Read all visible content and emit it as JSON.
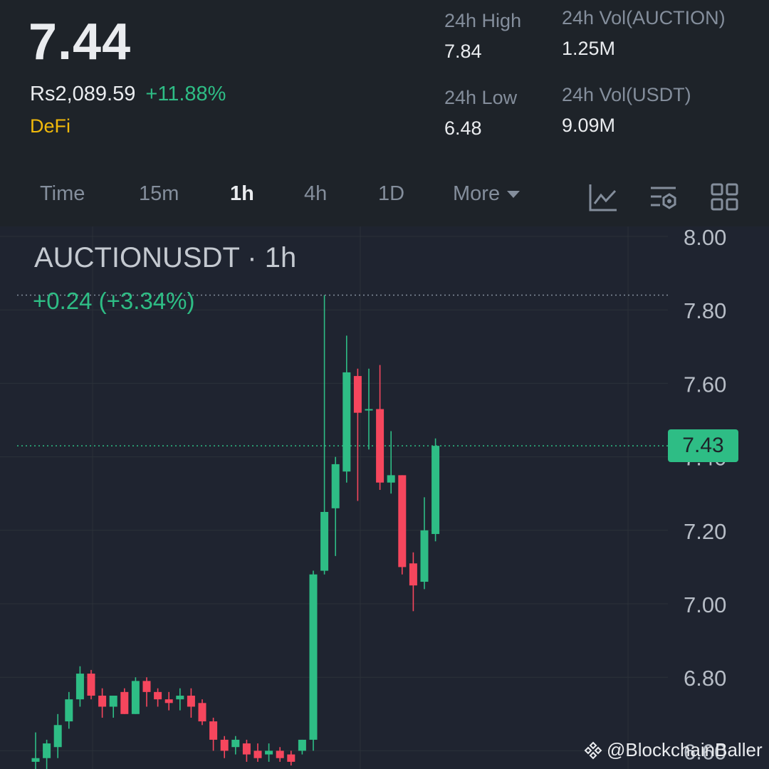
{
  "header": {
    "last_price": "7.44",
    "fiat_price": "Rs2,089.59",
    "change_pct": "+11.88%",
    "category": "DeFi"
  },
  "stats": {
    "high_label": "24h High",
    "high_value": "7.84",
    "low_label": "24h Low",
    "low_value": "6.48",
    "vol_base_label": "24h Vol(AUCTION)",
    "vol_base_value": "1.25M",
    "vol_quote_label": "24h Vol(USDT)",
    "vol_quote_value": "9.09M"
  },
  "intervals": [
    "Time",
    "15m",
    "1h",
    "4h",
    "1D",
    "More"
  ],
  "active_interval": "1h",
  "chart_header": {
    "symbol": "AUCTIONUSDT · 1h",
    "change": "+0.24 (+3.34%)"
  },
  "current_price_tag": "7.43",
  "watermark": "@BlockchainBaller",
  "colors": {
    "up": "#2ebd85",
    "down": "#f6465d",
    "accent": "#f0b90b",
    "bg": "#1e2329"
  },
  "chart_data": {
    "type": "candlestick",
    "y_ticks": [
      "8.00",
      "7.80",
      "7.60",
      "7.40",
      "7.20",
      "7.00",
      "6.80",
      "6.60"
    ],
    "ylim": [
      6.6,
      8.0
    ],
    "grid": true,
    "candles": [
      {
        "o": 6.57,
        "h": 6.65,
        "l": 6.55,
        "c": 6.58
      },
      {
        "o": 6.58,
        "h": 6.63,
        "l": 6.55,
        "c": 6.62
      },
      {
        "o": 6.61,
        "h": 6.7,
        "l": 6.58,
        "c": 6.67
      },
      {
        "o": 6.68,
        "h": 6.76,
        "l": 6.66,
        "c": 6.74
      },
      {
        "o": 6.74,
        "h": 6.83,
        "l": 6.72,
        "c": 6.81
      },
      {
        "o": 6.81,
        "h": 6.82,
        "l": 6.74,
        "c": 6.75
      },
      {
        "o": 6.75,
        "h": 6.77,
        "l": 6.69,
        "c": 6.72
      },
      {
        "o": 6.72,
        "h": 6.75,
        "l": 6.69,
        "c": 6.75
      },
      {
        "o": 6.76,
        "h": 6.77,
        "l": 6.7,
        "c": 6.7
      },
      {
        "o": 6.7,
        "h": 6.8,
        "l": 6.7,
        "c": 6.79
      },
      {
        "o": 6.79,
        "h": 6.8,
        "l": 6.72,
        "c": 6.76
      },
      {
        "o": 6.76,
        "h": 6.77,
        "l": 6.72,
        "c": 6.74
      },
      {
        "o": 6.74,
        "h": 6.76,
        "l": 6.71,
        "c": 6.73
      },
      {
        "o": 6.74,
        "h": 6.77,
        "l": 6.71,
        "c": 6.75
      },
      {
        "o": 6.75,
        "h": 6.77,
        "l": 6.69,
        "c": 6.72
      },
      {
        "o": 6.73,
        "h": 6.74,
        "l": 6.67,
        "c": 6.68
      },
      {
        "o": 6.68,
        "h": 6.69,
        "l": 6.6,
        "c": 6.63
      },
      {
        "o": 6.63,
        "h": 6.64,
        "l": 6.58,
        "c": 6.6
      },
      {
        "o": 6.61,
        "h": 6.64,
        "l": 6.59,
        "c": 6.63
      },
      {
        "o": 6.62,
        "h": 6.63,
        "l": 6.57,
        "c": 6.59
      },
      {
        "o": 6.6,
        "h": 6.62,
        "l": 6.57,
        "c": 6.58
      },
      {
        "o": 6.59,
        "h": 6.62,
        "l": 6.57,
        "c": 6.6
      },
      {
        "o": 6.6,
        "h": 6.61,
        "l": 6.57,
        "c": 6.58
      },
      {
        "o": 6.59,
        "h": 6.6,
        "l": 6.56,
        "c": 6.57
      },
      {
        "o": 6.6,
        "h": 6.63,
        "l": 6.59,
        "c": 6.63
      },
      {
        "o": 6.63,
        "h": 7.09,
        "l": 6.6,
        "c": 7.08
      },
      {
        "o": 7.09,
        "h": 7.84,
        "l": 7.08,
        "c": 7.25
      },
      {
        "o": 7.26,
        "h": 7.4,
        "l": 7.13,
        "c": 7.38
      },
      {
        "o": 7.36,
        "h": 7.73,
        "l": 7.33,
        "c": 7.63
      },
      {
        "o": 7.62,
        "h": 7.64,
        "l": 7.28,
        "c": 7.52
      },
      {
        "o": 7.53,
        "h": 7.64,
        "l": 7.42,
        "c": 7.53
      },
      {
        "o": 7.53,
        "h": 7.65,
        "l": 7.31,
        "c": 7.33
      },
      {
        "o": 7.33,
        "h": 7.47,
        "l": 7.3,
        "c": 7.35
      },
      {
        "o": 7.35,
        "h": 7.35,
        "l": 7.08,
        "c": 7.1
      },
      {
        "o": 7.11,
        "h": 7.14,
        "l": 6.98,
        "c": 7.05
      },
      {
        "o": 7.06,
        "h": 7.29,
        "l": 7.04,
        "c": 7.2
      },
      {
        "o": 7.19,
        "h": 7.45,
        "l": 7.17,
        "c": 7.43
      }
    ]
  }
}
